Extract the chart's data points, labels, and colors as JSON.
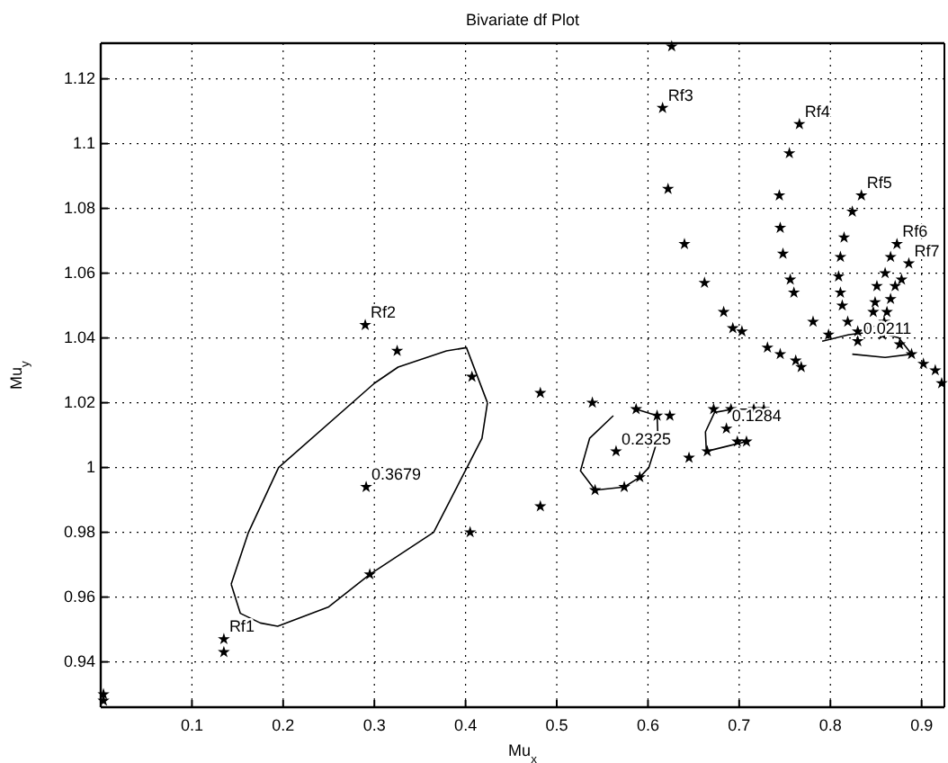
{
  "chart_data": {
    "type": "scatter",
    "title": "Bivariate df Plot",
    "xlabel": "Mu$_{x}$",
    "ylabel": "Mu$_{y}$",
    "xlim": [
      0,
      0.925
    ],
    "ylim": [
      0.926,
      1.131
    ],
    "xticks": [
      0.1,
      0.2,
      0.3,
      0.4,
      0.5,
      0.6,
      0.7,
      0.8,
      0.9
    ],
    "yticks": [
      0.94,
      0.96,
      0.98,
      1,
      1.02,
      1.04,
      1.06,
      1.08,
      1.1,
      1.12
    ],
    "grid": true,
    "series": [
      {
        "marker": "star",
        "color": "#000000",
        "x": [
          0.003,
          0.003,
          0.135,
          0.135,
          0.295,
          0.405,
          0.407,
          0.29,
          0.325,
          0.482,
          0.482,
          0.539,
          0.587,
          0.61,
          0.624,
          0.645,
          0.591,
          0.574,
          0.542,
          0.665,
          0.672,
          0.691,
          0.716,
          0.727,
          0.698,
          0.708,
          0.626,
          0.616,
          0.622,
          0.64,
          0.662,
          0.683,
          0.693,
          0.703,
          0.731,
          0.745,
          0.762,
          0.768,
          0.766,
          0.755,
          0.744,
          0.745,
          0.748,
          0.756,
          0.76,
          0.781,
          0.834,
          0.824,
          0.815,
          0.811,
          0.809,
          0.811,
          0.813,
          0.819,
          0.873,
          0.866,
          0.86,
          0.851,
          0.849,
          0.847,
          0.842,
          0.886,
          0.878,
          0.871,
          0.866,
          0.862,
          0.859,
          0.876,
          0.889,
          0.902,
          0.915,
          0.922,
          0.857,
          0.83,
          0.798
        ],
        "values": [
          0.928,
          0.93,
          0.947,
          0.943,
          0.967,
          0.98,
          1.028,
          1.044,
          1.036,
          1.023,
          0.988,
          1.02,
          1.018,
          1.016,
          1.016,
          1.003,
          0.997,
          0.994,
          0.993,
          1.005,
          1.018,
          1.018,
          1.018,
          1.018,
          1.008,
          1.008,
          1.13,
          1.111,
          1.086,
          1.069,
          1.057,
          1.048,
          1.043,
          1.042,
          1.037,
          1.035,
          1.033,
          1.031,
          1.106,
          1.097,
          1.084,
          1.074,
          1.066,
          1.058,
          1.054,
          1.045,
          1.084,
          1.079,
          1.071,
          1.065,
          1.059,
          1.054,
          1.05,
          1.045,
          1.069,
          1.065,
          1.06,
          1.056,
          1.051,
          1.048,
          1.043,
          1.063,
          1.058,
          1.056,
          1.052,
          1.048,
          1.045,
          1.038,
          1.035,
          1.032,
          1.03,
          1.026,
          1.041,
          1.042,
          1.041
        ]
      },
      {
        "marker": "star",
        "color": "#000000",
        "x": [
          0.291,
          0.565,
          0.686,
          0.83
        ],
        "values": [
          0.994,
          1.005,
          1.012,
          1.039
        ]
      },
      {
        "type": "line",
        "marker": "none",
        "color": "#000000",
        "x": [
          0.143,
          0.153,
          0.175,
          0.194,
          0.25,
          0.295,
          0.365,
          0.418,
          0.424
        ],
        "values": [
          0.964,
          0.955,
          0.952,
          0.951,
          0.957,
          0.967,
          0.98,
          1.009,
          1.02
        ]
      },
      {
        "type": "line",
        "marker": "none",
        "color": "#000000",
        "x": [
          0.143,
          0.162,
          0.195,
          0.3,
          0.326,
          0.379,
          0.401,
          0.424
        ],
        "values": [
          0.964,
          0.98,
          1,
          1.026,
          1.031,
          1.036,
          1.037,
          1.02
        ]
      },
      {
        "type": "line",
        "marker": "none",
        "color": "#000000",
        "x": [
          0.587,
          0.61,
          0.611,
          0.601,
          0.591,
          0.574,
          0.542,
          0.526,
          0.536,
          0.562
        ],
        "values": [
          1.018,
          1.016,
          1.009,
          1,
          0.997,
          0.994,
          0.993,
          0.999,
          1.009,
          1.016
        ]
      },
      {
        "type": "line",
        "marker": "none",
        "color": "#000000",
        "x": [
          0.727,
          0.716,
          0.693,
          0.673,
          0.663,
          0.664,
          0.693,
          0.708
        ],
        "values": [
          1.016,
          1.018,
          1.018,
          1.017,
          1.011,
          1.005,
          1.007,
          1.008
        ]
      },
      {
        "type": "line",
        "marker": "none",
        "color": "#000000",
        "x": [
          0.791,
          0.82,
          0.85,
          0.875,
          0.889,
          0.86,
          0.824
        ],
        "values": [
          1.039,
          1.041,
          1.042,
          1.04,
          1.035,
          1.034,
          1.035
        ]
      }
    ],
    "annotations": [
      {
        "text": "Rf1",
        "x": 0.135,
        "y": 0.947
      },
      {
        "text": "Rf2",
        "x": 0.29,
        "y": 1.044
      },
      {
        "text": "Rf3",
        "x": 0.616,
        "y": 1.111
      },
      {
        "text": "Rf4",
        "x": 0.766,
        "y": 1.106
      },
      {
        "text": "Rf5",
        "x": 0.834,
        "y": 1.084
      },
      {
        "text": "Rf6",
        "x": 0.873,
        "y": 1.069
      },
      {
        "text": "Rf7",
        "x": 0.886,
        "y": 1.063
      },
      {
        "text": "0.3679",
        "x": 0.291,
        "y": 0.994
      },
      {
        "text": "0.2325",
        "x": 0.565,
        "y": 1.005
      },
      {
        "text": "0.1284",
        "x": 0.686,
        "y": 1.012
      },
      {
        "text": "0.0211",
        "x": 0.83,
        "y": 1.039
      }
    ]
  }
}
